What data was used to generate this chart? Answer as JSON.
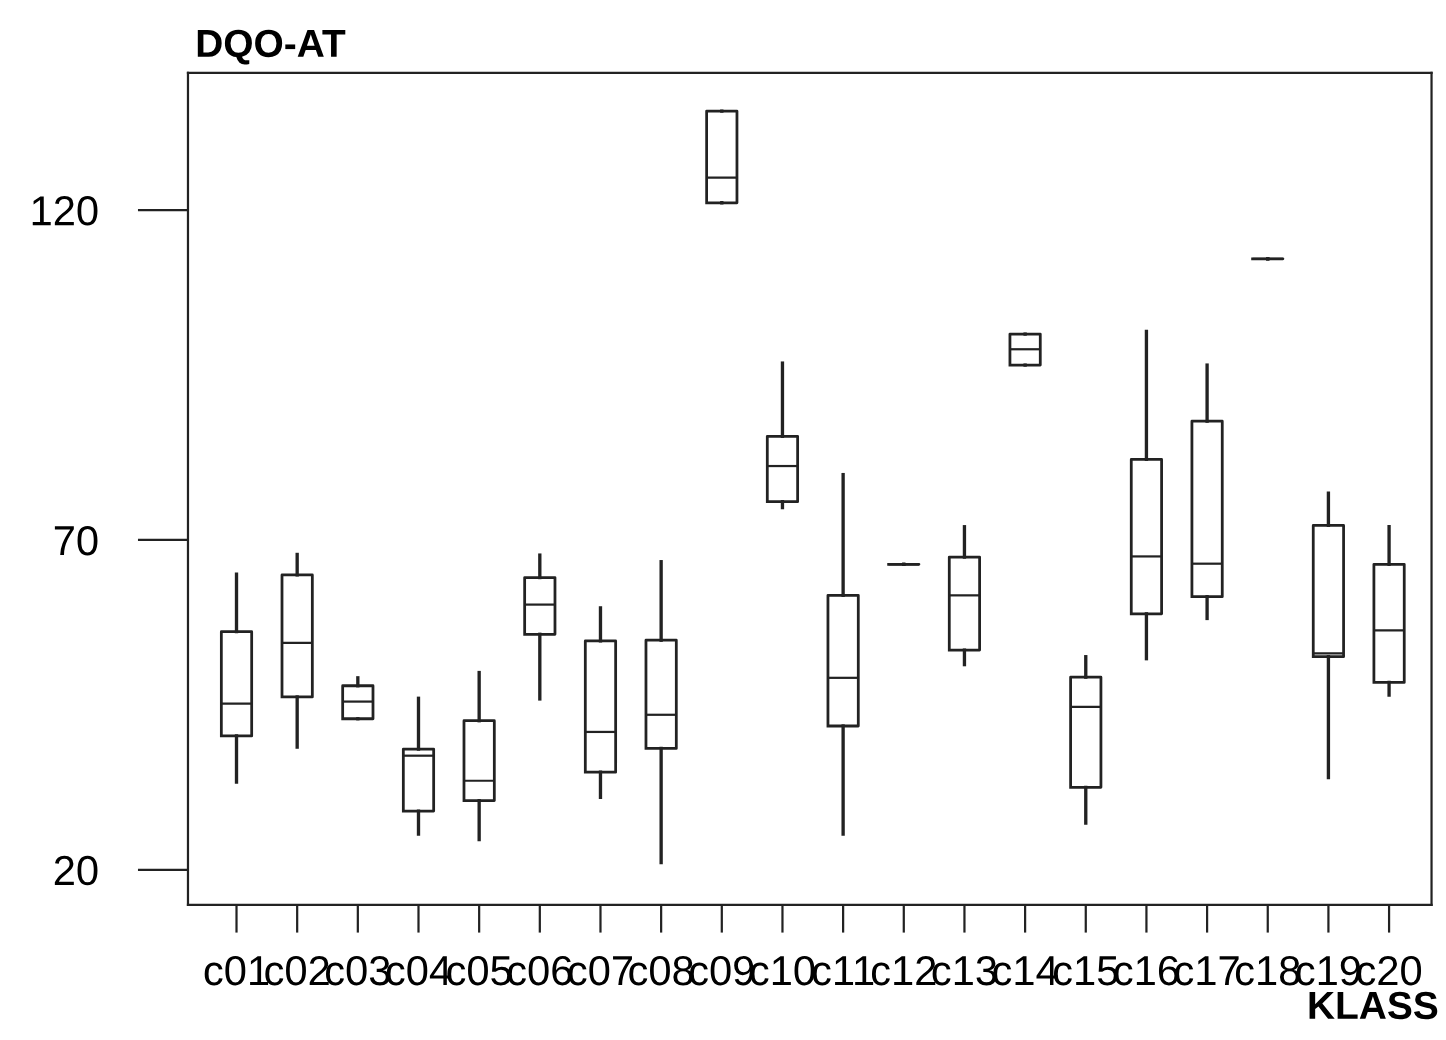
{
  "chart_data": {
    "type": "box",
    "title": "DQO-AT",
    "xlabel": "KLASS",
    "categories": [
      "c01",
      "c02",
      "c03",
      "c04",
      "c05",
      "c06",
      "c07",
      "c08",
      "c09",
      "c10",
      "c11",
      "c12",
      "c13",
      "c14",
      "c15",
      "c16",
      "c17",
      "c18",
      "c19",
      "c20"
    ],
    "boxes": [
      {
        "low": 33.3,
        "q1": 40.3,
        "median": 45.2,
        "q3": 56.1,
        "high": 64.8
      },
      {
        "low": 38.6,
        "q1": 46.2,
        "median": 54.4,
        "q3": 64.7,
        "high": 67.8
      },
      {
        "low": 42.9,
        "q1": 42.9,
        "median": 45.5,
        "q3": 47.9,
        "high": 49.1
      },
      {
        "low": 25.4,
        "q1": 28.9,
        "median": 37.3,
        "q3": 38.3,
        "high": 46
      },
      {
        "low": 24.6,
        "q1": 30.5,
        "median": 33.5,
        "q3": 42.6,
        "high": 49.9
      },
      {
        "low": 45.9,
        "q1": 55.7,
        "median": 60.2,
        "q3": 64.3,
        "high": 67.7
      },
      {
        "low": 31,
        "q1": 34.8,
        "median": 40.9,
        "q3": 54.7,
        "high": 59.7
      },
      {
        "low": 21.1,
        "q1": 38.4,
        "median": 43.5,
        "q3": 54.8,
        "high": 66.7
      },
      {
        "low": 121.1,
        "q1": 121.1,
        "median": 124.9,
        "q3": 135,
        "high": 135
      },
      {
        "low": 74.9,
        "q1": 75.8,
        "median": 81.2,
        "q3": 85.7,
        "high": 96.8
      },
      {
        "low": 25.4,
        "q1": 41.8,
        "median": 49.1,
        "q3": 61.6,
        "high": 79.9
      },
      {
        "low": 66.3,
        "q1": 66.3,
        "median": 66.3,
        "q3": 66.3,
        "high": 66.3
      },
      {
        "low": 51.1,
        "q1": 53.3,
        "median": 61.6,
        "q3": 67.4,
        "high": 72
      },
      {
        "low": 96.5,
        "q1": 96.5,
        "median": 98.9,
        "q3": 101.2,
        "high": 101.2
      },
      {
        "low": 27.1,
        "q1": 32.5,
        "median": 44.7,
        "q3": 49.2,
        "high": 52.3
      },
      {
        "low": 52,
        "q1": 58.8,
        "median": 67.5,
        "q3": 82.2,
        "high": 101.6
      },
      {
        "low": 58.1,
        "q1": 61.4,
        "median": 66.4,
        "q3": 88,
        "high": 96.5
      },
      {
        "low": 112.6,
        "q1": 112.6,
        "median": 112.6,
        "q3": 112.6,
        "high": 112.6
      },
      {
        "low": 34,
        "q1": 52.3,
        "median": 52.8,
        "q3": 72.2,
        "high": 77.1
      },
      {
        "low": 46.5,
        "q1": 48.4,
        "median": 56.3,
        "q3": 66.3,
        "high": 72
      }
    ],
    "ylim": [
      14.7,
      140.8
    ],
    "yticks": [
      20,
      70,
      120
    ],
    "grid": false
  }
}
